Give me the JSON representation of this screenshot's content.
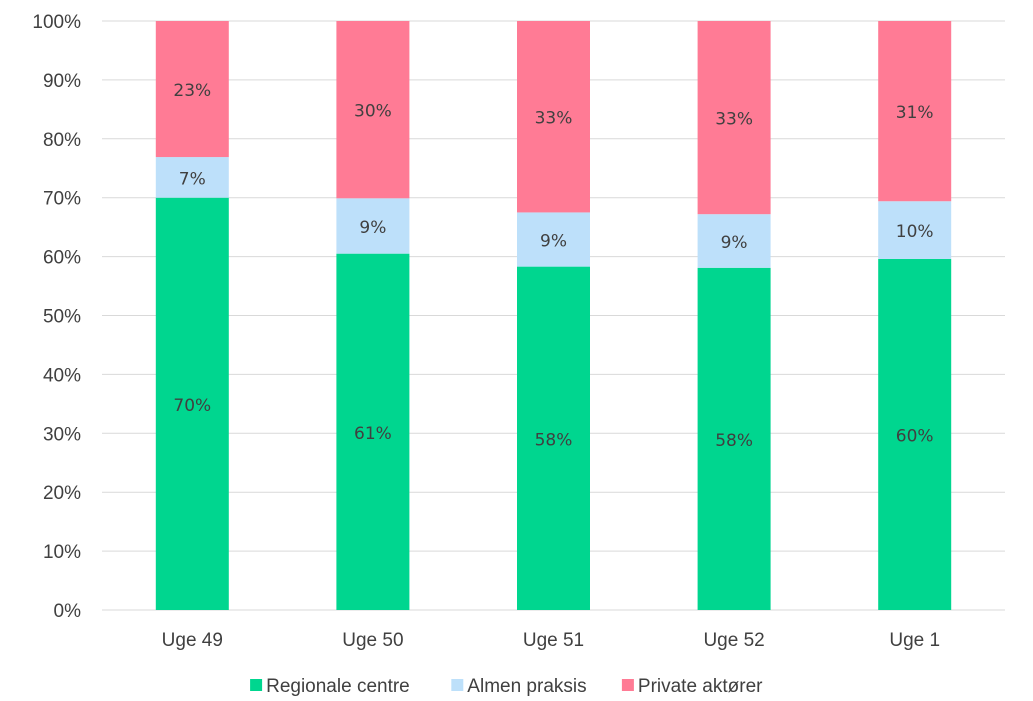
{
  "chart_data": {
    "type": "bar",
    "stacked": true,
    "categories": [
      "Uge 49",
      "Uge 50",
      "Uge 51",
      "Uge 52",
      "Uge 1"
    ],
    "series": [
      {
        "name": "Regionale centre",
        "values": [
          70,
          60.5,
          58.3,
          58.1,
          59.6
        ],
        "labels": [
          "70%",
          "61%",
          "58%",
          "58%",
          "60%"
        ],
        "color": "#00d68f"
      },
      {
        "name": "Almen praksis",
        "values": [
          6.9,
          9.4,
          9.2,
          9.1,
          9.8
        ],
        "labels": [
          "7%",
          "9%",
          "9%",
          "9%",
          "10%"
        ],
        "color": "#bde0fa"
      },
      {
        "name": "Private aktører",
        "values": [
          23.1,
          30.1,
          32.5,
          32.8,
          30.6
        ],
        "labels": [
          "23%",
          "30%",
          "33%",
          "33%",
          "31%"
        ],
        "color": "#ff7b95"
      }
    ],
    "ylim": [
      0,
      100
    ],
    "yticks": [
      "0%",
      "10%",
      "20%",
      "30%",
      "40%",
      "50%",
      "60%",
      "70%",
      "80%",
      "90%",
      "100%"
    ],
    "grid": true,
    "legend": "bottom",
    "title": "",
    "xlabel": "",
    "ylabel": ""
  }
}
